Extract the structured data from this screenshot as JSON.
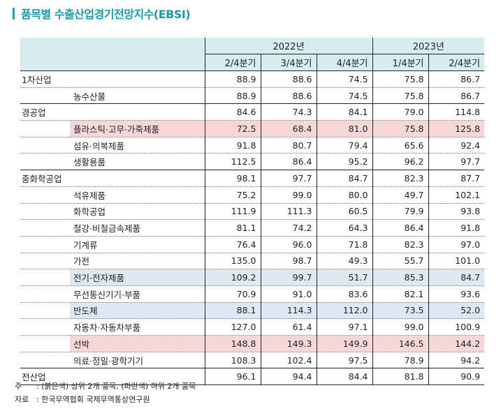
{
  "title": "품목별 수출산업경기전망지수(EBSI)",
  "header": {
    "years": [
      "2022년",
      "2023년"
    ],
    "quarters": [
      "2/4분기",
      "3/4분기",
      "4/4분기",
      "1/4분기",
      "2/4분기"
    ]
  },
  "rows": [
    {
      "group": "1차산업",
      "item": "",
      "values": [
        "88.9",
        "88.6",
        "74.5",
        "75.8",
        "86.7"
      ]
    },
    {
      "group": "",
      "item": "농수산물",
      "values": [
        "88.9",
        "88.6",
        "74.5",
        "75.8",
        "86.7"
      ]
    },
    {
      "group": "경공업",
      "item": "",
      "values": [
        "84.6",
        "74.3",
        "84.1",
        "79.0",
        "114.8"
      ]
    },
    {
      "group": "",
      "item": "플라스틱·고무·가죽제품",
      "values": [
        "72.5",
        "68.4",
        "81.0",
        "75.8",
        "125.8"
      ],
      "highlight": "red"
    },
    {
      "group": "",
      "item": "섬유·의복제품",
      "values": [
        "91.8",
        "80.7",
        "79.4",
        "65.6",
        "92.4"
      ]
    },
    {
      "group": "",
      "item": "생활용품",
      "values": [
        "112.5",
        "86.4",
        "95.2",
        "96.2",
        "97.7"
      ]
    },
    {
      "group": "중화학공업",
      "item": "",
      "values": [
        "98.1",
        "97.7",
        "84.7",
        "82.3",
        "87.7"
      ]
    },
    {
      "group": "",
      "item": "석유제품",
      "values": [
        "75.2",
        "99.0",
        "80.0",
        "49.7",
        "102.1"
      ]
    },
    {
      "group": "",
      "item": "화학공업",
      "values": [
        "111.9",
        "111.3",
        "60.5",
        "79.9",
        "93.8"
      ]
    },
    {
      "group": "",
      "item": "철강·비철금속제품",
      "values": [
        "81.1",
        "74.2",
        "64.3",
        "86.4",
        "91.8"
      ]
    },
    {
      "group": "",
      "item": "기계류",
      "values": [
        "76.4",
        "96.0",
        "71.8",
        "82.3",
        "97.0"
      ]
    },
    {
      "group": "",
      "item": "가전",
      "values": [
        "135.0",
        "98.7",
        "49.3",
        "55.7",
        "101.0"
      ]
    },
    {
      "group": "",
      "item": "전기·전자제품",
      "values": [
        "109.2",
        "99.7",
        "51.7",
        "85.3",
        "84.7"
      ],
      "highlight": "blue"
    },
    {
      "group": "",
      "item": "무선통신기기·부품",
      "values": [
        "70.9",
        "91.0",
        "83.6",
        "82.1",
        "93.6"
      ]
    },
    {
      "group": "",
      "item": "반도체",
      "values": [
        "88.1",
        "114.3",
        "112.0",
        "73.5",
        "52.0"
      ],
      "highlight": "blue"
    },
    {
      "group": "",
      "item": "자동차·자동차부품",
      "values": [
        "127.0",
        "61.4",
        "97.1",
        "99.0",
        "100.9"
      ]
    },
    {
      "group": "",
      "item": "선박",
      "values": [
        "148.8",
        "149.3",
        "149.9",
        "146.5",
        "144.2"
      ],
      "highlight": "red"
    },
    {
      "group": "",
      "item": "의료·정밀·광학기기",
      "values": [
        "108.3",
        "102.4",
        "97.5",
        "78.9",
        "94.2"
      ]
    },
    {
      "group": "전산업",
      "item": "",
      "values": [
        "96.1",
        "94.4",
        "84.4",
        "81.8",
        "90.9"
      ]
    }
  ],
  "group_end_rows": [
    1,
    5,
    17
  ],
  "footnotes": [
    {
      "key": "주",
      "text": ": (붉은색) 상위 2개 품목, (파란색) 하위 2개 품목"
    },
    {
      "key": "자료",
      "text": ": 한국무역협회 국제무역통상연구원"
    }
  ],
  "colors": {
    "accent": "#1c9aa3",
    "header_bg": "#d6ecef",
    "top_highlight": "#f6d6d9",
    "bottom_highlight": "#dde8f3"
  }
}
